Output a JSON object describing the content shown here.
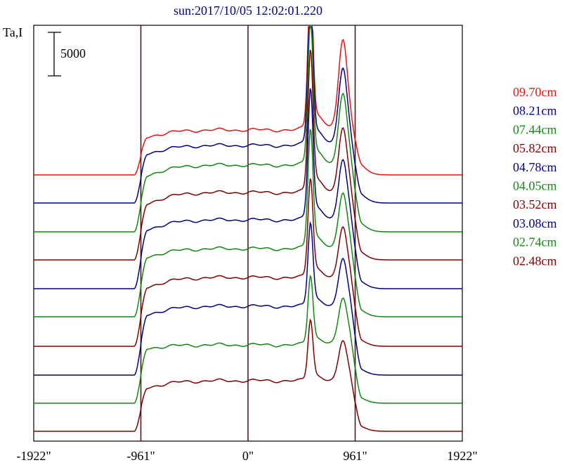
{
  "chart_data": {
    "type": "line",
    "title": "sun:2017/10/05 12:02:01.220",
    "ylabel": "Ta,I",
    "scale_bar_label": "5000",
    "x_ticks": [
      "-1922\"",
      "-961\"",
      "0\"",
      "961\"",
      "1922\""
    ],
    "x_tick_values": [
      -1922,
      -961,
      0,
      961,
      1922
    ],
    "xlim": [
      -1922,
      1922
    ],
    "vertical_lines": [
      -961,
      0,
      961
    ],
    "grid": false,
    "legend_position": "right",
    "series": [
      {
        "name": "09.70cm",
        "color": "#ee1111",
        "baseline": 249,
        "limb": 54,
        "disk": 64,
        "peak_x": 560,
        "peak_h": 200,
        "second_x": 850,
        "second_h": 120
      },
      {
        "name": "08.21cm",
        "color": "#000080",
        "baseline": 289,
        "limb": 70,
        "disk": 82,
        "peak_x": 560,
        "peak_h": 203,
        "second_x": 850,
        "second_h": 105
      },
      {
        "name": "07.44cm",
        "color": "#118811",
        "baseline": 330,
        "limb": 80,
        "disk": 95,
        "peak_x": 560,
        "peak_h": 200,
        "second_x": 850,
        "second_h": 100
      },
      {
        "name": "05.82cm",
        "color": "#800000",
        "baseline": 370,
        "limb": 80,
        "disk": 96,
        "peak_x": 560,
        "peak_h": 192,
        "second_x": 850,
        "second_h": 92
      },
      {
        "name": "04.78cm",
        "color": "#000080",
        "baseline": 411,
        "limb": 84,
        "disk": 98,
        "peak_x": 560,
        "peak_h": 177,
        "second_x": 850,
        "second_h": 85
      },
      {
        "name": "04.05cm",
        "color": "#118811",
        "baseline": 451,
        "limb": 85,
        "disk": 97,
        "peak_x": 560,
        "peak_h": 161,
        "second_x": 850,
        "second_h": 78
      },
      {
        "name": "03.52cm",
        "color": "#800000",
        "baseline": 493,
        "limb": 84,
        "disk": 98,
        "peak_x": 560,
        "peak_h": 134,
        "second_x": 850,
        "second_h": 73
      },
      {
        "name": "03.08cm",
        "color": "#000080",
        "baseline": 534,
        "limb": 86,
        "disk": 98,
        "peak_x": 560,
        "peak_h": 113,
        "second_x": 850,
        "second_h": 68
      },
      {
        "name": "02.74cm",
        "color": "#118811",
        "baseline": 574,
        "limb": 78,
        "disk": 83,
        "peak_x": 560,
        "peak_h": 93,
        "second_x": 850,
        "second_h": 62
      },
      {
        "name": "02.48cm",
        "color": "#800000",
        "baseline": 614,
        "limb": 62,
        "disk": 72,
        "peak_x": 560,
        "peak_h": 83,
        "second_x": 850,
        "second_h": 57
      }
    ]
  },
  "colors": {
    "axis": "#000000",
    "vline": "#4d1a1a",
    "title": "#000080"
  }
}
